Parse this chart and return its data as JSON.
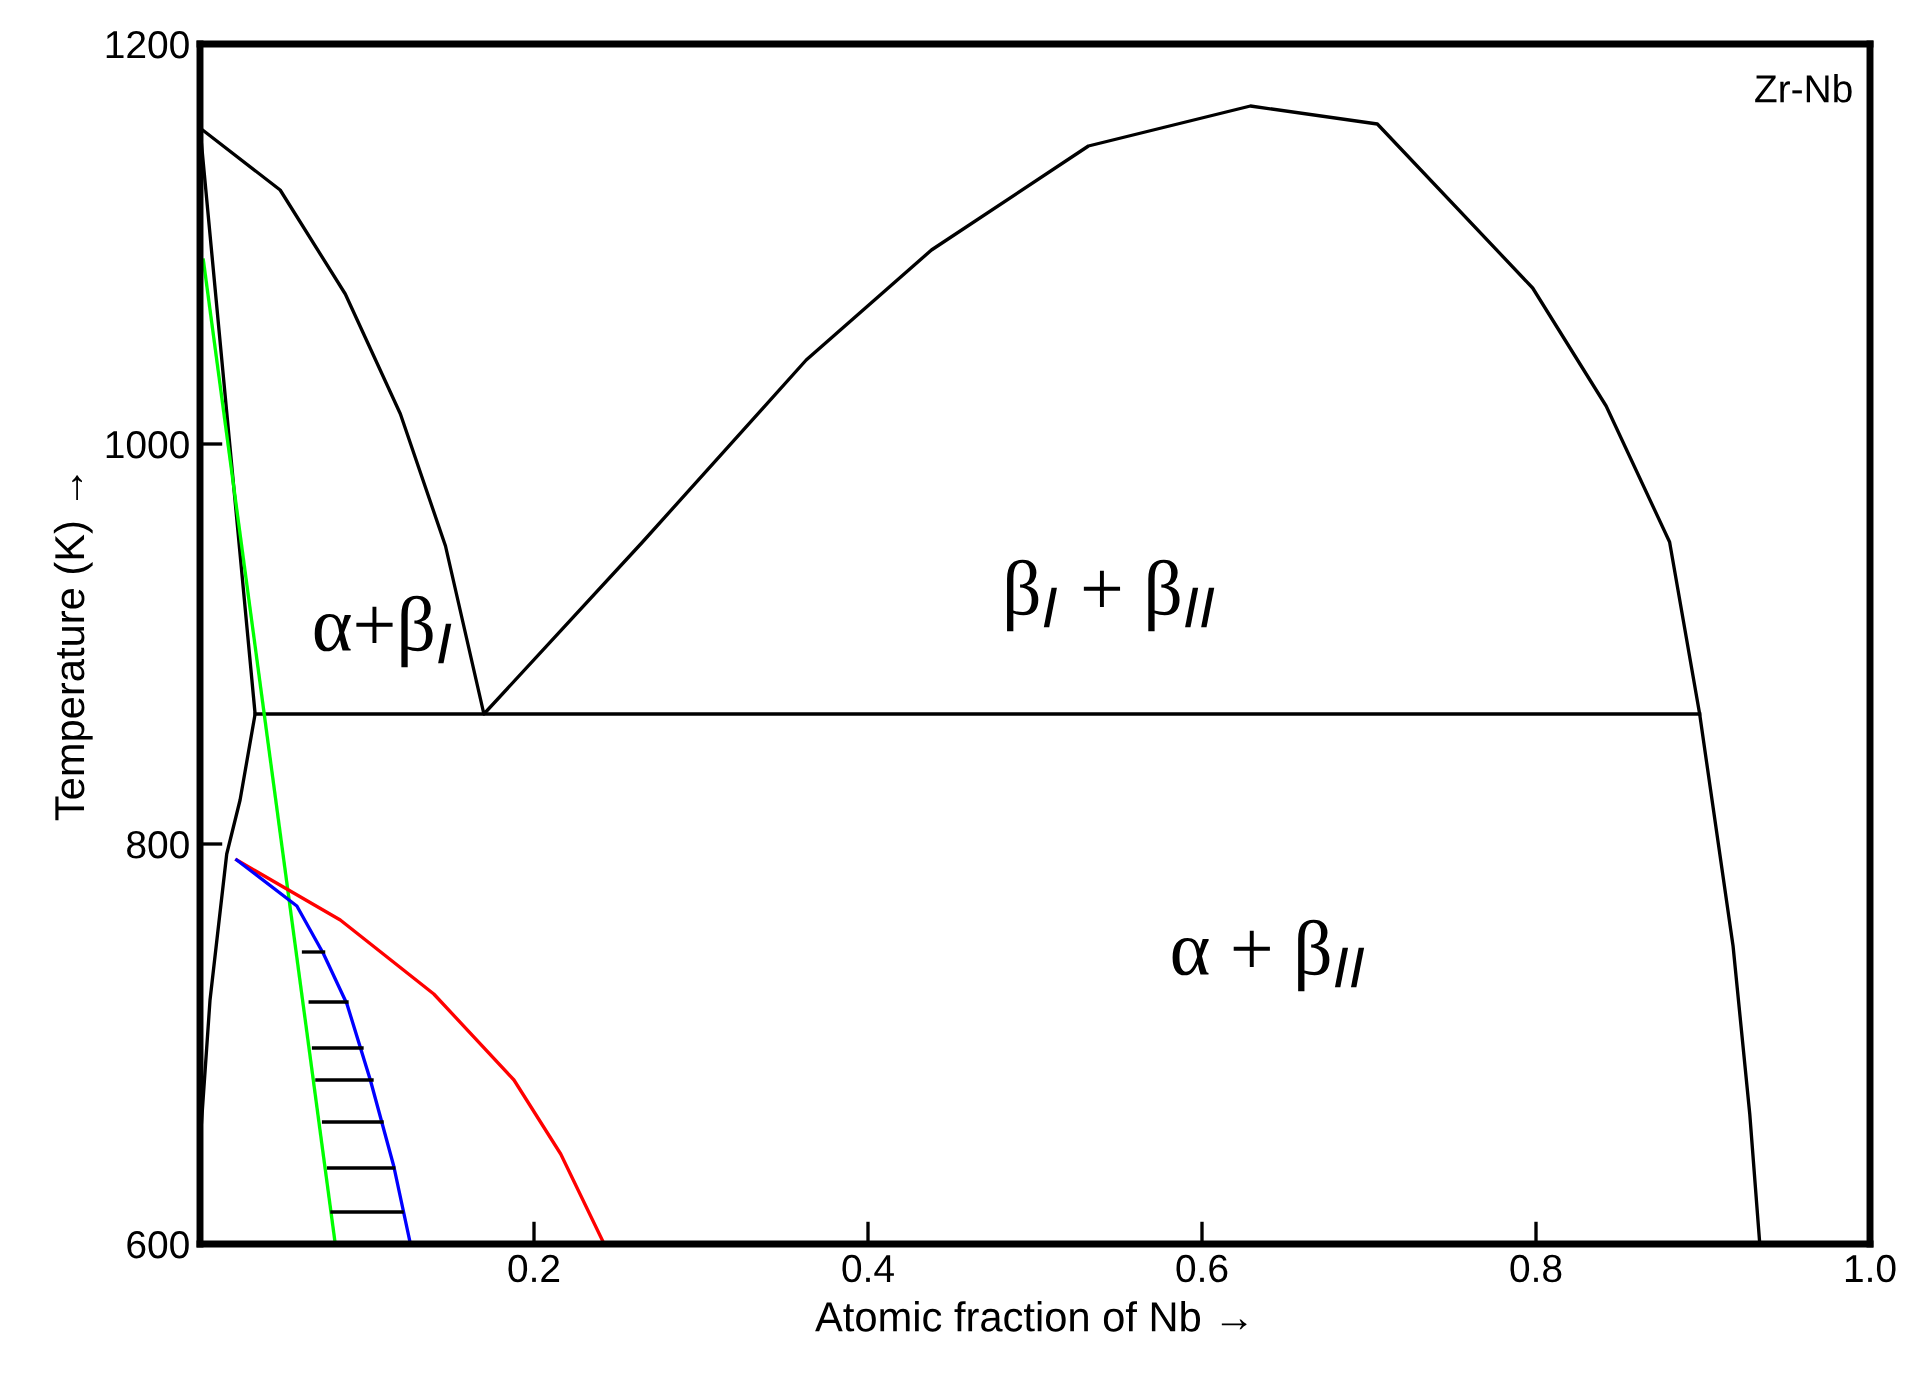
{
  "chart_data": {
    "type": "line",
    "xlabel": "Atomic fraction of Nb →",
    "ylabel": "Temperature (K) →",
    "xlim": [
      0,
      1.0
    ],
    "ylim": [
      600,
      1200
    ],
    "xticks": [
      {
        "value": 0,
        "label": null
      },
      0.2,
      0.4,
      0.6,
      0.8,
      {
        "value": 1.0,
        "label": "1.0"
      }
    ],
    "yticks": [
      600,
      800,
      1000,
      1200
    ],
    "grid": false,
    "legend": false,
    "marker": "none",
    "line_style": "solid",
    "annotations": [
      "Zr-Nb",
      "α+β$_{I}$",
      "β$_{I}$ + β$_{II}$",
      "α + β$_{II}$"
    ],
    "series": [
      {
        "color": "#000000",
        "x": [
          0,
          0.006,
          0.016,
          0.024,
          0.033,
          0,
          0.048,
          0.087,
          0.12,
          0.147,
          0.17,
          0.265,
          0.363,
          0.438,
          0.532,
          0.629,
          0.705,
          0.798,
          0.842,
          0.88,
          0.898,
          0.918,
          0.928,
          0.934
        ],
        "values": [
          650,
          722,
          795,
          822,
          865,
          1158,
          1127,
          1075,
          1015,
          949,
          865,
          951,
          1042,
          1097,
          1149,
          1169,
          1160,
          1078,
          1019,
          951,
          865,
          749,
          665,
          600
        ]
      },
      {
        "color": "#000000",
        "x": [
          0.033,
          0.898
        ],
        "values": [
          865,
          865
        ]
      },
      {
        "color": "#00ff00",
        "x": [
          0.002,
          0.081
        ],
        "values": [
          1092,
          600
        ]
      },
      {
        "color": "#ff0000",
        "x": [
          0.022,
          0.084,
          0.14,
          0.188,
          0.216,
          0.242
        ],
        "values": [
          792,
          762,
          725,
          682,
          645,
          600
        ]
      },
      {
        "color": "#0000ff",
        "x": [
          0.022,
          0.058,
          0.074,
          0.088,
          0.102,
          0.116,
          0.126
        ],
        "values": [
          792,
          769,
          745,
          720,
          682,
          639,
          600
        ]
      },
      {
        "color": "#000000",
        "x": [
          0.062,
          0.074
        ],
        "values": [
          746,
          746
        ]
      },
      {
        "color": "#000000",
        "x": [
          0.066,
          0.088
        ],
        "values": [
          721,
          721
        ]
      },
      {
        "color": "#000000",
        "x": [
          0.068,
          0.097
        ],
        "values": [
          698,
          698
        ]
      },
      {
        "color": "#000000",
        "x": [
          0.07,
          0.103
        ],
        "values": [
          682,
          682
        ]
      },
      {
        "color": "#000000",
        "x": [
          0.074,
          0.109
        ],
        "values": [
          661,
          661
        ]
      },
      {
        "color": "#000000",
        "x": [
          0.077,
          0.116
        ],
        "values": [
          638,
          638
        ]
      },
      {
        "color": "#000000",
        "x": [
          0.079,
          0.121
        ],
        "values": [
          616,
          616
        ]
      }
    ]
  }
}
